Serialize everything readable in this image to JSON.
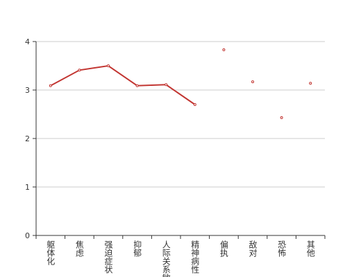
{
  "chart_data": {
    "type": "line",
    "categories": [
      "躯体化",
      "焦虑",
      "强迫症状",
      "抑郁",
      "人际关系敏感",
      "精神病性",
      "偏执",
      "敌对",
      "恐怖",
      "其他"
    ],
    "values": [
      3.09,
      3.41,
      3.5,
      3.09,
      3.11,
      2.7,
      3.83,
      3.17,
      2.43,
      3.14
    ],
    "color": "#c23531",
    "ylim": [
      0,
      4
    ],
    "yticks": [
      0,
      1,
      2,
      3,
      4
    ],
    "grid": true
  }
}
